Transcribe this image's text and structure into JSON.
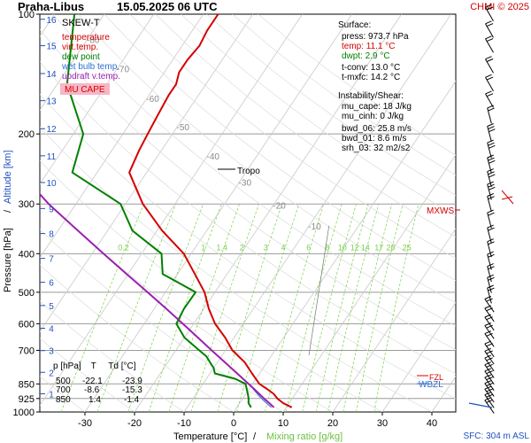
{
  "header": {
    "station": "Praha-Libus",
    "datetime": "15.05.2025 06 UTC",
    "credit": "CHMI © 2025"
  },
  "legend": {
    "title": "SKEW-T",
    "items": [
      {
        "label": "temperature",
        "color": "#d40000"
      },
      {
        "label": "virt.temp.",
        "color": "#d40000"
      },
      {
        "label": "dew point",
        "color": "#008000"
      },
      {
        "label": "wet bulb temp.",
        "color": "#3070d0"
      },
      {
        "label": "updraft v.temp.",
        "color": "#9b1fb0"
      }
    ],
    "badge": "MU CAPE"
  },
  "surface": {
    "title": "Surface:",
    "press": "press: 973.7 hPa",
    "temp": "temp: 11.1 °C",
    "dwpt": "dwpt: 2.9 °C",
    "tconv": "t-conv: 13.0 °C",
    "tmxfc": "t-mxfc: 14.2 °C"
  },
  "instability": {
    "title": "Instability/Shear:",
    "lines": [
      "mu_cape: 18 J/kg",
      "mu_cinh: 0 J/kg",
      "bwd_06: 25.8 m/s",
      "bwd_01: 8.6 m/s",
      "srh_03: 32 m2/s2"
    ]
  },
  "table": {
    "header": "p [hPa]    T     Td [°C]",
    "rows": [
      {
        "p": "500",
        "t": "-22.1",
        "td": "-23.9"
      },
      {
        "p": "700",
        "t": "-8.6",
        "td": "-15.3"
      },
      {
        "p": "850",
        "t": "1.4",
        "td": "-1.4"
      }
    ]
  },
  "markers": {
    "tropo": "Tropo",
    "mxws": "MXWS",
    "fzl": "FZL",
    "wbzl": "WBZL"
  },
  "footer": {
    "sfc": "SFC: 304 m ASL"
  },
  "colors": {
    "temperature": "#d40000",
    "dewpoint": "#008000",
    "wetbulb": "#3070d0",
    "parcel": "#9b1fb0",
    "mixing": "#7ad14a",
    "badge_bg": "#f7b6c6"
  },
  "chart_data": {
    "type": "line",
    "title": "Praha-Libus 15.05.2025 06 UTC",
    "xlabel": "Temperature [°C]",
    "xlabel2": "Mixing ratio [g/kg]",
    "ylabel": "Pressure [hPa]",
    "ylabel2": "Altitude [km]",
    "xlim": [
      -35,
      45
    ],
    "ylim": [
      1000,
      100
    ],
    "y_scale": "log",
    "x_ticks": [
      -30,
      -20,
      -10,
      0,
      10,
      20,
      30,
      40
    ],
    "y_ticks": [
      100,
      200,
      300,
      400,
      500,
      600,
      700,
      850,
      925,
      1000
    ],
    "altitude_km_ticks": [
      1,
      2,
      3,
      4,
      5,
      6,
      7,
      8,
      9,
      10,
      11,
      12,
      13,
      14,
      15,
      16
    ],
    "isotherm_labels": [
      -80,
      -70,
      -60,
      -50,
      -40,
      -30,
      -20,
      -10
    ],
    "mixing_ratio_labels": [
      "0.2",
      "1",
      "1.4",
      "2",
      "3",
      "4",
      "6",
      "8",
      "10",
      "12",
      "14",
      "17",
      "20",
      "25"
    ],
    "series": [
      {
        "name": "temperature",
        "points": [
          [
            973.7,
            11.1
          ],
          [
            950,
            8.8
          ],
          [
            925,
            7.0
          ],
          [
            900,
            5.6
          ],
          [
            875,
            3.6
          ],
          [
            850,
            1.4
          ],
          [
            800,
            -1.5
          ],
          [
            750,
            -4.5
          ],
          [
            700,
            -8.6
          ],
          [
            650,
            -11.8
          ],
          [
            600,
            -15.7
          ],
          [
            550,
            -19.0
          ],
          [
            500,
            -22.1
          ],
          [
            450,
            -26.5
          ],
          [
            400,
            -31.5
          ],
          [
            350,
            -39.0
          ],
          [
            300,
            -46.5
          ],
          [
            250,
            -53.5
          ],
          [
            220,
            -54.5
          ],
          [
            200,
            -55.0
          ],
          [
            180,
            -55.5
          ],
          [
            160,
            -56.0
          ],
          [
            150,
            -56.0
          ],
          [
            140,
            -57.0
          ],
          [
            130,
            -57.0
          ],
          [
            120,
            -56.5
          ],
          [
            110,
            -57.0
          ],
          [
            100,
            -57.0
          ]
        ]
      },
      {
        "name": "dew point",
        "points": [
          [
            973.7,
            2.9
          ],
          [
            950,
            1.8
          ],
          [
            925,
            1.2
          ],
          [
            900,
            0.4
          ],
          [
            850,
            -1.4
          ],
          [
            825,
            -4.2
          ],
          [
            800,
            -9.0
          ],
          [
            775,
            -10.0
          ],
          [
            750,
            -11.5
          ],
          [
            725,
            -13.0
          ],
          [
            700,
            -15.3
          ],
          [
            650,
            -20.0
          ],
          [
            600,
            -23.5
          ],
          [
            550,
            -24.0
          ],
          [
            500,
            -23.9
          ],
          [
            450,
            -33.0
          ],
          [
            400,
            -36.0
          ],
          [
            350,
            -45.0
          ],
          [
            300,
            -51.0
          ],
          [
            250,
            -65.0
          ],
          [
            200,
            -68.0
          ],
          [
            150,
            -78.0
          ],
          [
            100,
            -86.0
          ]
        ]
      },
      {
        "name": "wet bulb temp.",
        "points": [
          [
            973.7,
            7.0
          ],
          [
            950,
            5.4
          ],
          [
            925,
            3.8
          ],
          [
            900,
            2.3
          ],
          [
            875,
            0.8
          ],
          [
            850,
            -0.6
          ]
        ]
      },
      {
        "name": "updraft v.temp.",
        "points": [
          [
            973.7,
            7.5
          ],
          [
            950,
            6.0
          ],
          [
            925,
            4.3
          ],
          [
            900,
            2.7
          ],
          [
            875,
            1.0
          ],
          [
            850,
            -0.8
          ],
          [
            800,
            -4.5
          ],
          [
            750,
            -8.5
          ],
          [
            700,
            -12.8
          ],
          [
            650,
            -17.3
          ],
          [
            600,
            -22.2
          ],
          [
            550,
            -27.6
          ],
          [
            500,
            -33.6
          ],
          [
            450,
            -40.3
          ],
          [
            400,
            -47.7
          ],
          [
            350,
            -56.0
          ],
          [
            300,
            -65.5
          ],
          [
            250,
            -75.5
          ],
          [
            200,
            -84.5
          ],
          [
            150,
            -95.0
          ],
          [
            100,
            -108.0
          ]
        ]
      }
    ]
  }
}
